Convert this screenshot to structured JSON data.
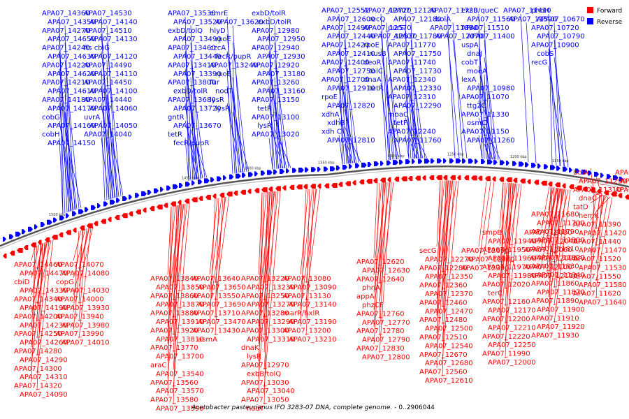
{
  "caption": {
    "organism": "Acetobacter pasteurianus IFO 3283-07 DNA, complete genome.",
    "range": " - 0..2906044"
  },
  "legend": [
    {
      "label": "Forward",
      "color": "#ff0000"
    },
    {
      "label": "Reverse",
      "color": "#0000ff"
    }
  ],
  "scale_ticks": [
    "1500 kbp",
    "1450 kbp",
    "1400 kbp",
    "1350 kbp",
    "1300 kbp",
    "1250 kbp",
    "1200 kbp",
    "1150 kbp"
  ],
  "top_labels": [
    "APA07_14360",
    "APA07_14350",
    "APA07_14270",
    "APA07_14650",
    "APA07_14240",
    "APA07_14630",
    "APA07_14220",
    "APA07_14620",
    "APA07_14210",
    "APA07_14610",
    "APA07_14180",
    "APA07_14170",
    "cobG",
    "APA07_14160",
    "cobH",
    "APA07_14150",
    "APA07_14530",
    "APA07_14140",
    "APA07_14510",
    "APA07_14130",
    "fis cbiG",
    "APA07_14120",
    "APA07_14490",
    "APA07_14110",
    "APA07_14450",
    "APA07_14100",
    "APA07_14440",
    "APA07_14060",
    "uvrA",
    "APA07_14050",
    "APA07_14040",
    "APA07_13530",
    "APA07_13520",
    "exbD/tolQ",
    "APA07_13490",
    "APA07_13460",
    "APA07_13440",
    "APA07_13410",
    "APA07_13390",
    "APA07_13800",
    "exbD/tolR",
    "APA07_13680",
    "APA07_13720",
    "gntR",
    "APA07_13670",
    "tetR",
    "fecR/pupR",
    "emrE",
    "APA07_13620",
    "hlyD",
    "rpoE",
    "czcA",
    "fecR/pupR",
    "APA07_13240",
    "rpoE",
    "fur",
    "nodT",
    "lysR",
    "lysR",
    "exbD/tolR",
    "exbD/tolR",
    "APA07_12980",
    "APA07_12950",
    "APA07_12940",
    "APA07_12930",
    "APA07_12920",
    "APA07_13180",
    "APA07_13260",
    "APA07_13160",
    "APA07_13150",
    "tetR",
    "APA07_13100",
    "lysR",
    "APA07_13020",
    "APA07_12552",
    "APA07_12600",
    "APA07_12490",
    "APA07_12440",
    "APA07_12420",
    "APA07_12410",
    "APA07_12400",
    "APA07_12750",
    "APA07_12700",
    "APA07_12910",
    "rpoE",
    "APA07_12820",
    "xdhA",
    "xdhB",
    "xdh C",
    "APA07_12810",
    "APA07_12720",
    "recQ",
    "APA07_12570",
    "APA07_12530",
    "rpoE",
    "nusB",
    "deoR",
    "tolC",
    "dnaA",
    "tetR",
    "APA07_12120",
    "APA07_12180",
    "purS",
    "APA07_11780",
    "APA07_11770",
    "APA07_11750",
    "APA07_11740",
    "APA07_11730",
    "APA07_12340",
    "APA07_12330",
    "APA07_12310",
    "APA07_12290",
    "moaC",
    "tetF",
    "APA07_12240",
    "APA07_11760",
    "APA07_11720",
    "bolA",
    "APA07_11880",
    "APA07_12070",
    "exsB/queC",
    "APA07_11560",
    "APA07_11510",
    "APA07_11400",
    "uspA",
    "dnaJ",
    "cobT",
    "moeA",
    "lexA",
    "APA07_10980",
    "APA07_11070",
    "ttg2C",
    "APA07_11330",
    "osmC",
    "APA07_11150",
    "APA07_11260",
    "APA07_11410",
    "APA07_11590",
    "phoH",
    "APA07_10670",
    "APA07_10720",
    "APA07_10790",
    "APA07_10900",
    "cobS",
    "recG"
  ],
  "bottom_labels": [
    "APA07_14460",
    "APA07_14470",
    "cbiD",
    "APA07_14330",
    "APA07_14340",
    "APA07_14190",
    "APA07_14200",
    "APA07_14230",
    "APA07_14250",
    "APA07_14260",
    "APA07_14280",
    "APA07_14290",
    "APA07_14300",
    "APA07_14310",
    "APA07_14320",
    "APA07_14090",
    "APA07_14070",
    "APA07_14080",
    "copG",
    "APA07_14030",
    "APA07_14000",
    "APA07_13930",
    "APA07_13940",
    "APA07_13980",
    "APA07_13990",
    "APA07_14010",
    "APA07_13840",
    "APA07_13850",
    "APA07_13860",
    "APA07_13870",
    "APA07_13880",
    "APA07_13910",
    "APA07_13920",
    "APA07_13810",
    "APA07_13770",
    "APA07_13700",
    "araC",
    "APA07_13540",
    "APA07_13560",
    "APA07_13570",
    "APA07_13580",
    "APA07_13590",
    "APA07_13640",
    "APA07_13650",
    "APA07_13550",
    "APA07_13690",
    "APA07_13710",
    "APA07_13470",
    "APA07_13430",
    "asmA",
    "APA07_13220",
    "APA07_13230",
    "APA07_13250",
    "APA07_13270",
    "APA07_13280",
    "APA07_13290",
    "APA07_13300",
    "APA07_13310",
    "dnaK",
    "lysR",
    "APA07_12970",
    "exbB/tolQ",
    "APA07_13030",
    "APA07_13040",
    "APA07_13050",
    "nodT",
    "APA07_13080",
    "APA07_13090",
    "APA07_13130",
    "APA07_13140",
    "marR/hxlR",
    "APA07_13190",
    "APA07_13200",
    "APA07_13210",
    "APA07_12620",
    "APA07_12630",
    "APA07_12640",
    "phnA",
    "appA",
    "phzCF",
    "APA07_12760",
    "APA07_12770",
    "APA07_12780",
    "APA07_12790",
    "APA07_12830",
    "APA07_12800",
    "secG",
    "APA07_12270",
    "APA07_12280",
    "APA07_12350",
    "APA07_12360",
    "APA07_12370",
    "APA07_12460",
    "APA07_12470",
    "APA07_12480",
    "APA07_12500",
    "APA07_12510",
    "APA07_12540",
    "APA07_12670",
    "APA07_12680",
    "APA07_12560",
    "APA07_12610",
    "APA07_12690",
    "APA07_12380",
    "APA07_12390",
    "smpB",
    "APA07_11940",
    "APA07_11950",
    "APA07_11960",
    "APA07_11970",
    "APA07_11980",
    "APA07_12020",
    "terC",
    "APA07_12160",
    "APA07_12170",
    "APA07_12200",
    "APA07_12210",
    "APA07_12220",
    "APA07_12250",
    "APA07_11990",
    "APA07_12000",
    "APA07_12030",
    "APA07_12040",
    "APA07_12060",
    "APA07_12090",
    "APA07_12100",
    "APA07_12110",
    "APA07_11680",
    "APA07_11700",
    "APA07_11790",
    "APA07_11800",
    "APA07_11810",
    "APA07_11820",
    "APA07_11830",
    "APA07_11840",
    "APA07_11860",
    "APA07_11870",
    "APA07_11890",
    "APA07_11900",
    "APA07_11910",
    "APA07_11920",
    "APA07_11930",
    "bolA",
    "APA07_11290",
    "APA07_11310",
    "dnaC",
    "tatD",
    "hemK",
    "APA07_11390",
    "APA07_11420",
    "APA07_11440",
    "APA07_11470",
    "APA07_11520",
    "APA07_11530",
    "APA07_11550",
    "APA07_11580",
    "APA07_11620",
    "APA07_11640",
    "APA07_11660",
    "APA07_11690",
    "APA07_11710"
  ]
}
